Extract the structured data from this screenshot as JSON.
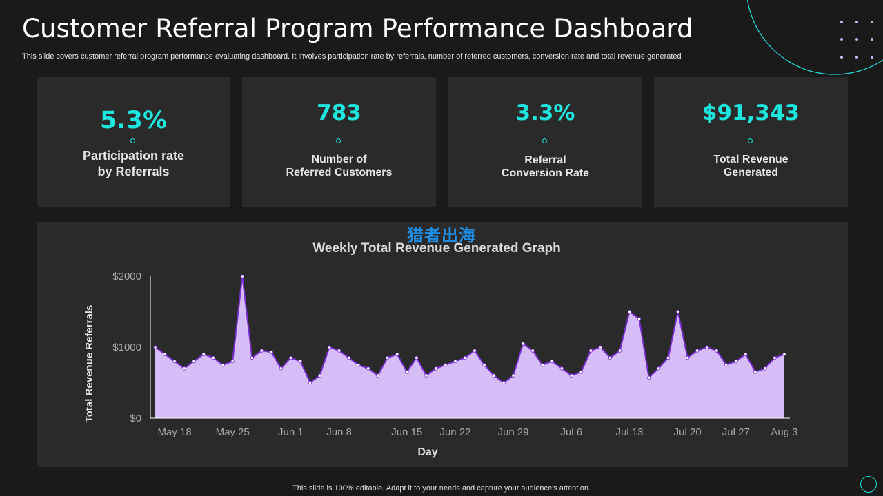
{
  "header": {
    "title": "Customer Referral Program Performance Dashboard",
    "subtitle": "This slide covers customer referral program performance evaluating dashboard. It involves participation rate by referrals, number of referred customers, conversion rate and total revenue generated"
  },
  "kpis": [
    {
      "value": "5.3%",
      "label": "Participation rate\nby Referrals"
    },
    {
      "value": "783",
      "label": "Number of\nReferred Customers"
    },
    {
      "value": "3.3%",
      "label": "Referral\nConversion Rate"
    },
    {
      "value": "$91,343",
      "label": "Total Revenue\nGenerated"
    }
  ],
  "watermark": "猎者出海",
  "footer": "This slide is 100% editable. Adapt it to your needs and capture your audience's attention.",
  "colors": {
    "accent": "#1ee6df",
    "area_fill": "#d7bdf7",
    "line": "#7a2fd6",
    "background": "#1a1a1a",
    "panel": "#2a2a2a"
  },
  "chart_data": {
    "type": "area",
    "title": "Weekly Total Revenue Generated Graph",
    "xlabel": "Day",
    "ylabel": "Total Revenue Referrals",
    "ylim": [
      0,
      2000
    ],
    "y_ticks": [
      0,
      1000,
      2000
    ],
    "y_tick_labels": [
      "$0",
      "$1000",
      "$2000"
    ],
    "x_ticks": [
      {
        "label": "May 18",
        "index": 2
      },
      {
        "label": "May 25",
        "index": 8
      },
      {
        "label": "Jun 1",
        "index": 14
      },
      {
        "label": "Jun 8",
        "index": 19
      },
      {
        "label": "Jun 15",
        "index": 26
      },
      {
        "label": "Jun 22",
        "index": 31
      },
      {
        "label": "Jun 29",
        "index": 37
      },
      {
        "label": "Jul 6",
        "index": 43
      },
      {
        "label": "Jul 13",
        "index": 49
      },
      {
        "label": "Jul 20",
        "index": 55
      },
      {
        "label": "Jul 27",
        "index": 60
      },
      {
        "label": "Aug 3",
        "index": 65
      }
    ],
    "series": [
      {
        "name": "Total Revenue Referrals",
        "values": [
          1000,
          900,
          800,
          700,
          800,
          900,
          850,
          750,
          800,
          2000,
          850,
          950,
          930,
          700,
          850,
          800,
          500,
          600,
          1000,
          950,
          850,
          750,
          700,
          600,
          850,
          900,
          650,
          850,
          600,
          700,
          750,
          800,
          850,
          950,
          750,
          600,
          500,
          600,
          1050,
          950,
          750,
          800,
          700,
          600,
          650,
          950,
          1000,
          850,
          950,
          1500,
          1400,
          570,
          700,
          850,
          1500,
          850,
          950,
          1000,
          950,
          750,
          800,
          900,
          650,
          700,
          850,
          900
        ]
      }
    ]
  }
}
